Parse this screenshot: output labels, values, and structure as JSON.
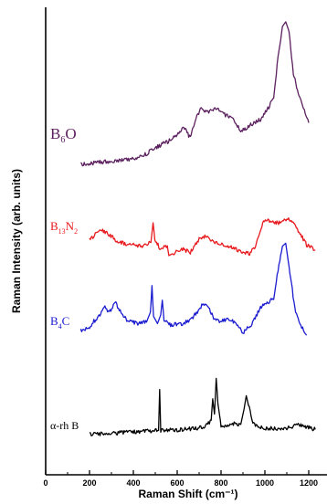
{
  "chart_data": {
    "type": "line",
    "title": "",
    "xlabel": "Raman Shift (cm⁻¹)",
    "ylabel": "Raman Intensity (arb. units)",
    "xlim": [
      0,
      1250
    ],
    "x_ticks": [
      0,
      200,
      400,
      600,
      800,
      1000,
      1200
    ],
    "y_ticks": [],
    "grid": false,
    "legend": "labels beside each curve",
    "series": [
      {
        "name": "B6O",
        "label": {
          "base": "B",
          "sub": "6",
          "tail": "O"
        },
        "color": "#5b1f5e",
        "points": [
          [
            160,
            0.01
          ],
          [
            220,
            0.02
          ],
          [
            280,
            0.03
          ],
          [
            340,
            0.035
          ],
          [
            400,
            0.045
          ],
          [
            450,
            0.07
          ],
          [
            500,
            0.12
          ],
          [
            530,
            0.14
          ],
          [
            560,
            0.16
          ],
          [
            600,
            0.2
          ],
          [
            630,
            0.25
          ],
          [
            660,
            0.18
          ],
          [
            690,
            0.33
          ],
          [
            710,
            0.37
          ],
          [
            740,
            0.35
          ],
          [
            780,
            0.37
          ],
          [
            820,
            0.33
          ],
          [
            860,
            0.3
          ],
          [
            890,
            0.22
          ],
          [
            920,
            0.25
          ],
          [
            950,
            0.28
          ],
          [
            980,
            0.3
          ],
          [
            1010,
            0.36
          ],
          [
            1040,
            0.44
          ],
          [
            1060,
            0.7
          ],
          [
            1080,
            0.9
          ],
          [
            1095,
            0.93
          ],
          [
            1110,
            0.87
          ],
          [
            1130,
            0.6
          ],
          [
            1160,
            0.43
          ],
          [
            1200,
            0.28
          ]
        ]
      },
      {
        "name": "B13N2",
        "label": {
          "base": "B",
          "sub": "13",
          "tail": "N",
          "sub2": "2"
        },
        "color": "#e8191d",
        "points": [
          [
            200,
            0.24
          ],
          [
            230,
            0.3
          ],
          [
            260,
            0.33
          ],
          [
            290,
            0.29
          ],
          [
            330,
            0.23
          ],
          [
            380,
            0.2
          ],
          [
            440,
            0.19
          ],
          [
            480,
            0.22
          ],
          [
            490,
            0.4
          ],
          [
            498,
            0.25
          ],
          [
            520,
            0.17
          ],
          [
            555,
            0.19
          ],
          [
            562,
            0.1
          ],
          [
            580,
            0.12
          ],
          [
            620,
            0.16
          ],
          [
            660,
            0.13
          ],
          [
            700,
            0.25
          ],
          [
            730,
            0.28
          ],
          [
            760,
            0.24
          ],
          [
            800,
            0.2
          ],
          [
            850,
            0.18
          ],
          [
            900,
            0.13
          ],
          [
            930,
            0.12
          ],
          [
            960,
            0.2
          ],
          [
            990,
            0.4
          ],
          [
            1010,
            0.43
          ],
          [
            1040,
            0.4
          ],
          [
            1070,
            0.4
          ],
          [
            1100,
            0.44
          ],
          [
            1120,
            0.42
          ],
          [
            1160,
            0.3
          ],
          [
            1190,
            0.2
          ],
          [
            1230,
            0.15
          ]
        ]
      },
      {
        "name": "B4C",
        "label": {
          "base": "B",
          "sub": "4",
          "tail": "C"
        },
        "color": "#1b1bd0",
        "points": [
          [
            160,
            0.06
          ],
          [
            200,
            0.09
          ],
          [
            240,
            0.16
          ],
          [
            270,
            0.22
          ],
          [
            290,
            0.19
          ],
          [
            320,
            0.25
          ],
          [
            340,
            0.2
          ],
          [
            370,
            0.13
          ],
          [
            420,
            0.11
          ],
          [
            460,
            0.12
          ],
          [
            478,
            0.19
          ],
          [
            485,
            0.37
          ],
          [
            492,
            0.16
          ],
          [
            510,
            0.11
          ],
          [
            525,
            0.17
          ],
          [
            532,
            0.27
          ],
          [
            540,
            0.14
          ],
          [
            570,
            0.1
          ],
          [
            620,
            0.11
          ],
          [
            660,
            0.13
          ],
          [
            700,
            0.21
          ],
          [
            720,
            0.25
          ],
          [
            740,
            0.23
          ],
          [
            770,
            0.14
          ],
          [
            800,
            0.12
          ],
          [
            830,
            0.15
          ],
          [
            860,
            0.12
          ],
          [
            900,
            0.05
          ],
          [
            940,
            0.1
          ],
          [
            980,
            0.22
          ],
          [
            1010,
            0.25
          ],
          [
            1040,
            0.28
          ],
          [
            1060,
            0.48
          ],
          [
            1080,
            0.64
          ],
          [
            1095,
            0.66
          ],
          [
            1110,
            0.5
          ],
          [
            1140,
            0.18
          ],
          [
            1180,
            0.05
          ],
          [
            1190,
            0.03
          ]
        ]
      },
      {
        "name": "α-rh B",
        "label": {
          "base": "α-rh B"
        },
        "color": "#000000",
        "points": [
          [
            200,
            0.0
          ],
          [
            280,
            0.01
          ],
          [
            350,
            0.02
          ],
          [
            420,
            0.03
          ],
          [
            480,
            0.035
          ],
          [
            515,
            0.04
          ],
          [
            520,
            0.44
          ],
          [
            525,
            0.04
          ],
          [
            600,
            0.045
          ],
          [
            680,
            0.06
          ],
          [
            730,
            0.08
          ],
          [
            755,
            0.14
          ],
          [
            762,
            0.35
          ],
          [
            770,
            0.2
          ],
          [
            778,
            0.55
          ],
          [
            786,
            0.3
          ],
          [
            800,
            0.09
          ],
          [
            830,
            0.09
          ],
          [
            860,
            0.11
          ],
          [
            890,
            0.1
          ],
          [
            905,
            0.25
          ],
          [
            915,
            0.38
          ],
          [
            925,
            0.29
          ],
          [
            945,
            0.11
          ],
          [
            1000,
            0.06
          ],
          [
            1060,
            0.06
          ],
          [
            1120,
            0.07
          ],
          [
            1160,
            0.1
          ],
          [
            1180,
            0.08
          ],
          [
            1230,
            0.05
          ]
        ]
      }
    ]
  }
}
